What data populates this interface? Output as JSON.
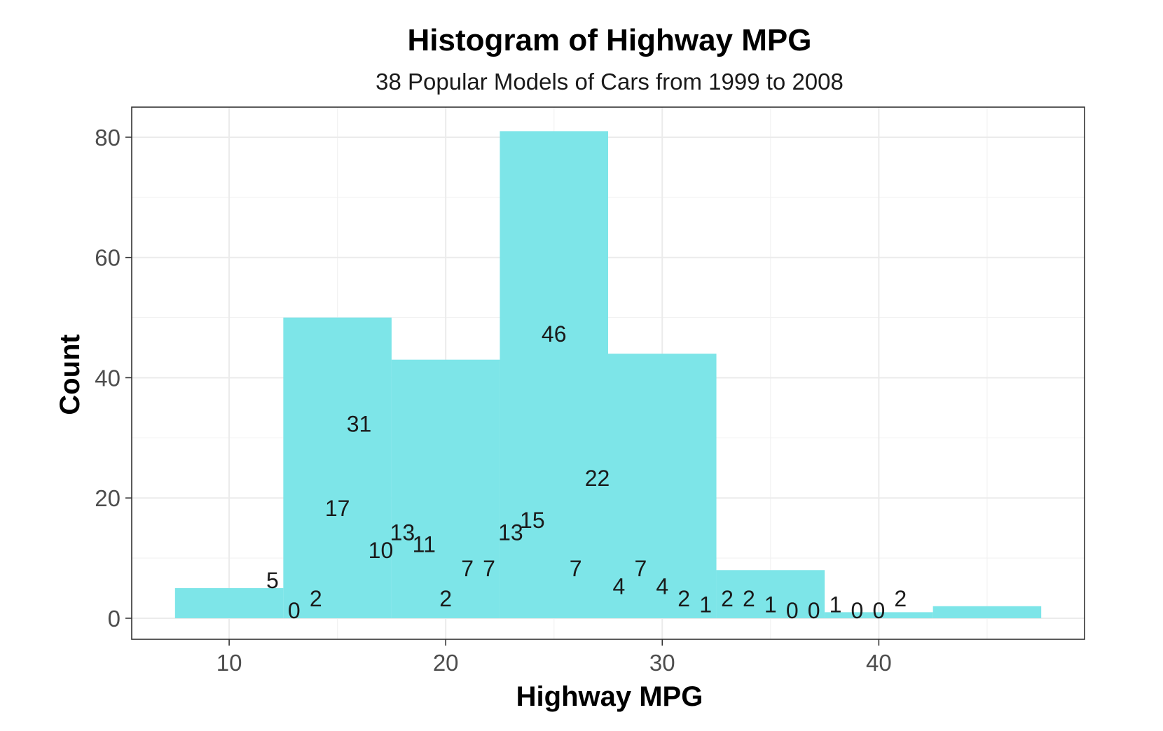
{
  "chart_data": {
    "type": "bar",
    "title": "Histogram of Highway MPG",
    "subtitle": "38 Popular Models of Cars from 1999 to 2008",
    "xlabel": "Highway MPG",
    "ylabel": "Count",
    "xlim": [
      5.5,
      49.5
    ],
    "ylim": [
      -3.5,
      85
    ],
    "x_ticks": [
      10,
      20,
      30,
      40
    ],
    "y_ticks": [
      0,
      20,
      40,
      60,
      80
    ],
    "grid": true,
    "legend": "none",
    "bar_color": "#7de5e8",
    "bins": [
      {
        "x0": 7.5,
        "x1": 12.5,
        "count": 5
      },
      {
        "x0": 12.5,
        "x1": 17.5,
        "count": 50
      },
      {
        "x0": 17.5,
        "x1": 22.5,
        "count": 43
      },
      {
        "x0": 22.5,
        "x1": 27.5,
        "count": 81
      },
      {
        "x0": 27.5,
        "x1": 32.5,
        "count": 44
      },
      {
        "x0": 32.5,
        "x1": 37.5,
        "count": 8
      },
      {
        "x0": 37.5,
        "x1": 42.5,
        "count": 1
      },
      {
        "x0": 42.5,
        "x1": 47.5,
        "count": 2
      }
    ],
    "value_labels": [
      {
        "x": 12,
        "y": 5,
        "text": "5"
      },
      {
        "x": 13,
        "y": 0,
        "text": "0"
      },
      {
        "x": 14,
        "y": 2,
        "text": "2"
      },
      {
        "x": 15,
        "y": 17,
        "text": "17"
      },
      {
        "x": 16,
        "y": 31,
        "text": "31"
      },
      {
        "x": 17,
        "y": 10,
        "text": "10"
      },
      {
        "x": 18,
        "y": 13,
        "text": "13"
      },
      {
        "x": 19,
        "y": 11,
        "text": "11"
      },
      {
        "x": 20,
        "y": 2,
        "text": "2"
      },
      {
        "x": 21,
        "y": 7,
        "text": "7"
      },
      {
        "x": 22,
        "y": 7,
        "text": "7"
      },
      {
        "x": 23,
        "y": 13,
        "text": "13"
      },
      {
        "x": 24,
        "y": 15,
        "text": "15"
      },
      {
        "x": 25,
        "y": 46,
        "text": "46"
      },
      {
        "x": 26,
        "y": 7,
        "text": "7"
      },
      {
        "x": 27,
        "y": 22,
        "text": "22"
      },
      {
        "x": 28,
        "y": 4,
        "text": "4"
      },
      {
        "x": 29,
        "y": 7,
        "text": "7"
      },
      {
        "x": 30,
        "y": 4,
        "text": "4"
      },
      {
        "x": 31,
        "y": 2,
        "text": "2"
      },
      {
        "x": 32,
        "y": 1,
        "text": "1"
      },
      {
        "x": 33,
        "y": 2,
        "text": "2"
      },
      {
        "x": 34,
        "y": 2,
        "text": "2"
      },
      {
        "x": 35,
        "y": 1,
        "text": "1"
      },
      {
        "x": 36,
        "y": 0,
        "text": "0"
      },
      {
        "x": 37,
        "y": 0,
        "text": "0"
      },
      {
        "x": 38,
        "y": 1,
        "text": "1"
      },
      {
        "x": 39,
        "y": 0,
        "text": "0"
      },
      {
        "x": 40,
        "y": 0,
        "text": "0"
      },
      {
        "x": 41,
        "y": 2,
        "text": "2"
      }
    ]
  }
}
